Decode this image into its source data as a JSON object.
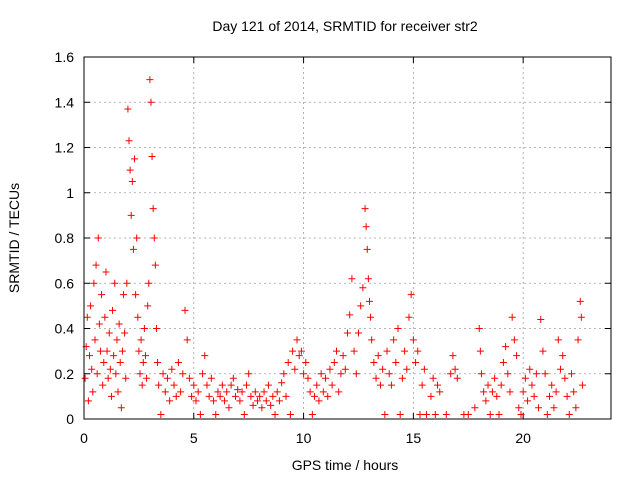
{
  "chart_data": {
    "type": "scatter",
    "title": "Day 121 of 2014, SRMTID for receiver str2",
    "xlabel": "GPS time / hours",
    "ylabel": "SRMTID / TECUs",
    "xlim": [
      0,
      24
    ],
    "ylim": [
      0,
      1.6
    ],
    "xticks": [
      0,
      5,
      10,
      15,
      20
    ],
    "xtick_labels": [
      "0",
      "5",
      "10",
      "15",
      "20"
    ],
    "yticks": [
      0,
      0.2,
      0.4,
      0.6,
      0.8,
      1.0,
      1.2,
      1.4,
      1.6
    ],
    "ytick_labels": [
      "0",
      "0.2",
      "0.4",
      "0.6",
      "0.8",
      "1",
      "1.2",
      "1.4",
      "1.6"
    ],
    "grid": true,
    "marker": "+",
    "color": "#ff0000",
    "series": [
      {
        "name": "str2",
        "points": [
          [
            0.05,
            0.18
          ],
          [
            0.1,
            0.32
          ],
          [
            0.15,
            0.45
          ],
          [
            0.2,
            0.08
          ],
          [
            0.25,
            0.28
          ],
          [
            0.3,
            0.5
          ],
          [
            0.35,
            0.22
          ],
          [
            0.4,
            0.12
          ],
          [
            0.45,
            0.6
          ],
          [
            0.5,
            0.35
          ],
          [
            0.55,
            0.68
          ],
          [
            0.6,
            0.2
          ],
          [
            0.65,
            0.8
          ],
          [
            0.7,
            0.42
          ],
          [
            0.75,
            0.3
          ],
          [
            0.8,
            0.55
          ],
          [
            0.85,
            0.15
          ],
          [
            0.9,
            0.25
          ],
          [
            0.95,
            0.45
          ],
          [
            1.0,
            0.65
          ],
          [
            1.05,
            0.3
          ],
          [
            1.1,
            0.18
          ],
          [
            1.15,
            0.38
          ],
          [
            1.2,
            0.22
          ],
          [
            1.25,
            0.1
          ],
          [
            1.3,
            0.48
          ],
          [
            1.35,
            0.28
          ],
          [
            1.4,
            0.6
          ],
          [
            1.45,
            0.2
          ],
          [
            1.5,
            0.35
          ],
          [
            1.55,
            0.12
          ],
          [
            1.6,
            0.42
          ],
          [
            1.65,
            0.25
          ],
          [
            1.7,
            0.05
          ],
          [
            1.75,
            0.3
          ],
          [
            1.8,
            0.55
          ],
          [
            1.85,
            0.38
          ],
          [
            1.9,
            0.18
          ],
          [
            1.95,
            0.6
          ],
          [
            2.0,
            1.37
          ],
          [
            2.05,
            1.23
          ],
          [
            2.1,
            1.1
          ],
          [
            2.15,
            0.9
          ],
          [
            2.2,
            1.05
          ],
          [
            2.25,
            0.75
          ],
          [
            2.3,
            1.15
          ],
          [
            2.35,
            0.55
          ],
          [
            2.4,
            0.8
          ],
          [
            2.45,
            0.45
          ],
          [
            2.5,
            0.3
          ],
          [
            2.55,
            0.2
          ],
          [
            2.6,
            0.35
          ],
          [
            2.65,
            0.15
          ],
          [
            2.7,
            0.25
          ],
          [
            2.75,
            0.4
          ],
          [
            2.8,
            0.28
          ],
          [
            2.85,
            0.18
          ],
          [
            2.9,
            0.5
          ],
          [
            2.95,
            0.6
          ],
          [
            3.0,
            1.5
          ],
          [
            3.05,
            1.4
          ],
          [
            3.1,
            1.16
          ],
          [
            3.15,
            0.93
          ],
          [
            3.2,
            0.8
          ],
          [
            3.25,
            0.68
          ],
          [
            3.3,
            0.4
          ],
          [
            3.35,
            0.25
          ],
          [
            3.4,
            0.15
          ],
          [
            3.5,
            0.02
          ],
          [
            3.6,
            0.2
          ],
          [
            3.7,
            0.12
          ],
          [
            3.8,
            0.18
          ],
          [
            3.9,
            0.08
          ],
          [
            4.0,
            0.22
          ],
          [
            4.1,
            0.15
          ],
          [
            4.2,
            0.1
          ],
          [
            4.3,
            0.25
          ],
          [
            4.4,
            0.12
          ],
          [
            4.5,
            0.2
          ],
          [
            4.6,
            0.48
          ],
          [
            4.7,
            0.35
          ],
          [
            4.8,
            0.18
          ],
          [
            4.9,
            0.1
          ],
          [
            5.0,
            0.15
          ],
          [
            5.1,
            0.08
          ],
          [
            5.2,
            0.12
          ],
          [
            5.3,
            0.02
          ],
          [
            5.4,
            0.2
          ],
          [
            5.5,
            0.28
          ],
          [
            5.6,
            0.15
          ],
          [
            5.7,
            0.1
          ],
          [
            5.8,
            0.18
          ],
          [
            5.9,
            0.08
          ],
          [
            6.0,
            0.02
          ],
          [
            6.1,
            0.12
          ],
          [
            6.2,
            0.1
          ],
          [
            6.3,
            0.15
          ],
          [
            6.4,
            0.08
          ],
          [
            6.5,
            0.12
          ],
          [
            6.6,
            0.05
          ],
          [
            6.7,
            0.15
          ],
          [
            6.8,
            0.18
          ],
          [
            6.9,
            0.1
          ],
          [
            7.0,
            0.13
          ],
          [
            7.1,
            0.08
          ],
          [
            7.2,
            0.12
          ],
          [
            7.3,
            0.02
          ],
          [
            7.4,
            0.15
          ],
          [
            7.5,
            0.2
          ],
          [
            7.6,
            0.1
          ],
          [
            7.7,
            0.06
          ],
          [
            7.8,
            0.12
          ],
          [
            7.9,
            0.08
          ],
          [
            8.0,
            0.1
          ],
          [
            8.1,
            0.05
          ],
          [
            8.2,
            0.12
          ],
          [
            8.3,
            0.08
          ],
          [
            8.4,
            0.15
          ],
          [
            8.5,
            0.06
          ],
          [
            8.6,
            0.1
          ],
          [
            8.7,
            0.02
          ],
          [
            8.8,
            0.12
          ],
          [
            8.9,
            0.08
          ],
          [
            9.0,
            0.16
          ],
          [
            9.1,
            0.2
          ],
          [
            9.2,
            0.1
          ],
          [
            9.3,
            0.25
          ],
          [
            9.4,
            0.02
          ],
          [
            9.5,
            0.3
          ],
          [
            9.6,
            0.22
          ],
          [
            9.7,
            0.35
          ],
          [
            9.8,
            0.28
          ],
          [
            9.9,
            0.3
          ],
          [
            10.0,
            0.2
          ],
          [
            10.1,
            0.25
          ],
          [
            10.2,
            0.18
          ],
          [
            10.3,
            0.12
          ],
          [
            10.4,
            0.02
          ],
          [
            10.5,
            0.1
          ],
          [
            10.6,
            0.15
          ],
          [
            10.7,
            0.08
          ],
          [
            10.8,
            0.2
          ],
          [
            10.9,
            0.12
          ],
          [
            11.0,
            0.18
          ],
          [
            11.1,
            0.1
          ],
          [
            11.2,
            0.22
          ],
          [
            11.3,
            0.15
          ],
          [
            11.4,
            0.25
          ],
          [
            11.5,
            0.3
          ],
          [
            11.6,
            0.12
          ],
          [
            11.7,
            0.2
          ],
          [
            11.8,
            0.28
          ],
          [
            11.9,
            0.22
          ],
          [
            12.0,
            0.38
          ],
          [
            12.1,
            0.46
          ],
          [
            12.2,
            0.62
          ],
          [
            12.3,
            0.3
          ],
          [
            12.4,
            0.2
          ],
          [
            12.5,
            0.38
          ],
          [
            12.6,
            0.5
          ],
          [
            12.7,
            0.58
          ],
          [
            12.8,
            0.93
          ],
          [
            12.85,
            0.85
          ],
          [
            12.9,
            0.75
          ],
          [
            12.95,
            0.62
          ],
          [
            13.0,
            0.52
          ],
          [
            13.05,
            0.45
          ],
          [
            13.1,
            0.35
          ],
          [
            13.2,
            0.25
          ],
          [
            13.3,
            0.18
          ],
          [
            13.4,
            0.28
          ],
          [
            13.5,
            0.15
          ],
          [
            13.6,
            0.22
          ],
          [
            13.7,
            0.02
          ],
          [
            13.8,
            0.3
          ],
          [
            13.9,
            0.2
          ],
          [
            14.0,
            0.15
          ],
          [
            14.1,
            0.35
          ],
          [
            14.2,
            0.25
          ],
          [
            14.3,
            0.4
          ],
          [
            14.4,
            0.02
          ],
          [
            14.5,
            0.18
          ],
          [
            14.6,
            0.3
          ],
          [
            14.7,
            0.22
          ],
          [
            14.8,
            0.45
          ],
          [
            14.9,
            0.55
          ],
          [
            15.0,
            0.35
          ],
          [
            15.1,
            0.25
          ],
          [
            15.2,
            0.3
          ],
          [
            15.3,
            0.02
          ],
          [
            15.4,
            0.15
          ],
          [
            15.5,
            0.22
          ],
          [
            15.6,
            0.02
          ],
          [
            15.8,
            0.1
          ],
          [
            15.9,
            0.18
          ],
          [
            16.0,
            0.02
          ],
          [
            16.1,
            0.15
          ],
          [
            16.2,
            0.12
          ],
          [
            16.5,
            0.02
          ],
          [
            16.7,
            0.2
          ],
          [
            16.8,
            0.28
          ],
          [
            16.9,
            0.22
          ],
          [
            17.0,
            0.18
          ],
          [
            17.3,
            0.02
          ],
          [
            17.5,
            0.02
          ],
          [
            17.8,
            0.05
          ],
          [
            18.0,
            0.4
          ],
          [
            18.05,
            0.3
          ],
          [
            18.1,
            0.2
          ],
          [
            18.2,
            0.12
          ],
          [
            18.3,
            0.08
          ],
          [
            18.4,
            0.15
          ],
          [
            18.5,
            0.02
          ],
          [
            18.6,
            0.12
          ],
          [
            18.7,
            0.18
          ],
          [
            18.8,
            0.1
          ],
          [
            18.9,
            0.02
          ],
          [
            19.0,
            0.15
          ],
          [
            19.1,
            0.25
          ],
          [
            19.2,
            0.32
          ],
          [
            19.3,
            0.2
          ],
          [
            19.4,
            0.12
          ],
          [
            19.5,
            0.45
          ],
          [
            19.6,
            0.35
          ],
          [
            19.7,
            0.28
          ],
          [
            19.8,
            0.05
          ],
          [
            19.9,
            0.02
          ],
          [
            20.0,
            0.12
          ],
          [
            20.1,
            0.18
          ],
          [
            20.2,
            0.08
          ],
          [
            20.3,
            0.22
          ],
          [
            20.4,
            0.15
          ],
          [
            20.5,
            0.1
          ],
          [
            20.6,
            0.2
          ],
          [
            20.7,
            0.05
          ],
          [
            20.8,
            0.44
          ],
          [
            20.9,
            0.3
          ],
          [
            21.0,
            0.2
          ],
          [
            21.1,
            0.02
          ],
          [
            21.2,
            0.1
          ],
          [
            21.3,
            0.15
          ],
          [
            21.4,
            0.05
          ],
          [
            21.5,
            0.12
          ],
          [
            21.6,
            0.35
          ],
          [
            21.7,
            0.22
          ],
          [
            21.8,
            0.28
          ],
          [
            21.9,
            0.18
          ],
          [
            22.0,
            0.1
          ],
          [
            22.1,
            0.02
          ],
          [
            22.2,
            0.2
          ],
          [
            22.3,
            0.12
          ],
          [
            22.4,
            0.05
          ],
          [
            22.5,
            0.35
          ],
          [
            22.6,
            0.52
          ],
          [
            22.65,
            0.45
          ],
          [
            22.7,
            0.15
          ]
        ]
      }
    ]
  }
}
